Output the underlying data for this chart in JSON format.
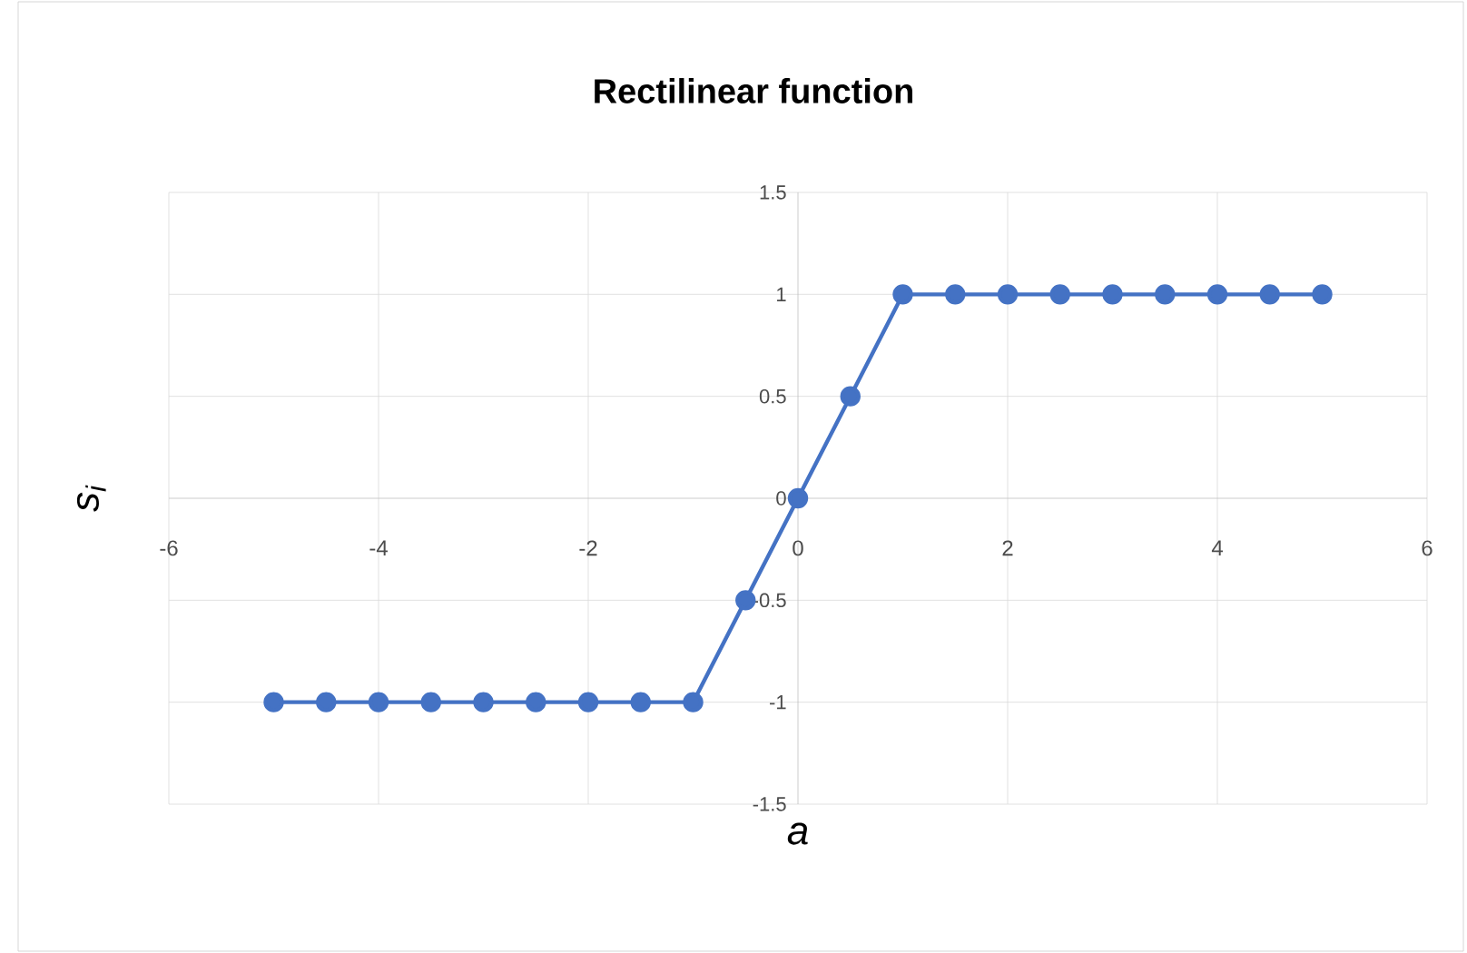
{
  "chart_data": {
    "type": "line",
    "title": "Rectilinear function",
    "xlabel": "a",
    "ylabel": "s$_{i}$",
    "x": [
      -5,
      -4.5,
      -4,
      -3.5,
      -3,
      -2.5,
      -2,
      -1.5,
      -1,
      -0.5,
      0,
      0.5,
      1,
      1.5,
      2,
      2.5,
      3,
      3.5,
      4,
      4.5,
      5
    ],
    "series": [
      {
        "color": "#4472c4",
        "values": [
          -1,
          -1,
          -1,
          -1,
          -1,
          -1,
          -1,
          -1,
          -1,
          -0.5,
          0,
          0.5,
          1,
          1,
          1,
          1,
          1,
          1,
          1,
          1,
          1
        ]
      }
    ],
    "xlim": [
      -6,
      6
    ],
    "ylim": [
      -1.5,
      1.5
    ],
    "xticks": [
      -6,
      -4,
      -2,
      0,
      2,
      4,
      6
    ],
    "yticks": [
      -1.5,
      -1,
      -0.5,
      0,
      0.5,
      1,
      1.5
    ],
    "grid": true,
    "marker": "circle",
    "line_style": "solid"
  }
}
